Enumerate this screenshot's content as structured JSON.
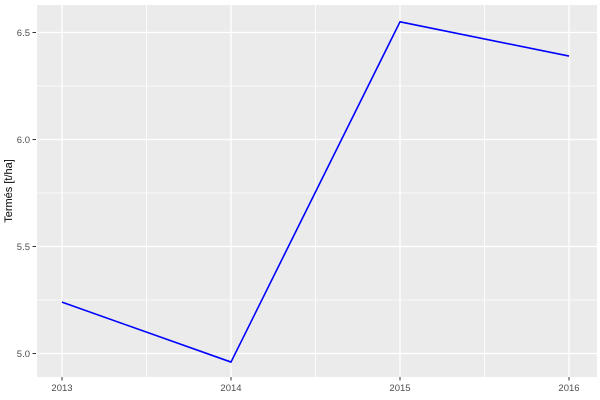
{
  "chart_data": {
    "type": "line",
    "title": "",
    "xlabel": "",
    "ylabel": "Termés [t/ha]",
    "x": [
      2013,
      2014,
      2015,
      2016
    ],
    "series": [
      {
        "name": "Termés",
        "color": "#0000FF",
        "values": [
          5.24,
          4.96,
          6.55,
          6.39
        ]
      }
    ],
    "x_tick_labels": [
      "2013",
      "2014",
      "2015",
      "2016"
    ],
    "y_ticks": [
      5.0,
      5.5,
      6.0,
      6.5
    ],
    "y_tick_labels": [
      "5.0",
      "5.5",
      "6.0",
      "6.5"
    ],
    "x_minor_ticks": [
      2013.5,
      2014.5,
      2015.5
    ],
    "y_minor_ticks": [
      5.25,
      5.75,
      6.25
    ],
    "xlim": [
      2012.85,
      2016.17
    ],
    "ylim": [
      4.89,
      6.63
    ],
    "grid": true,
    "legend": "none",
    "style": {
      "panel_bg": "#EBEBEB",
      "grid_color": "#FFFFFF",
      "tick_mark_color": "#333333",
      "tick_label_color": "#4D4D4D",
      "axis_title_color": "#000000",
      "outer_bg": "#FFFFFF"
    }
  }
}
